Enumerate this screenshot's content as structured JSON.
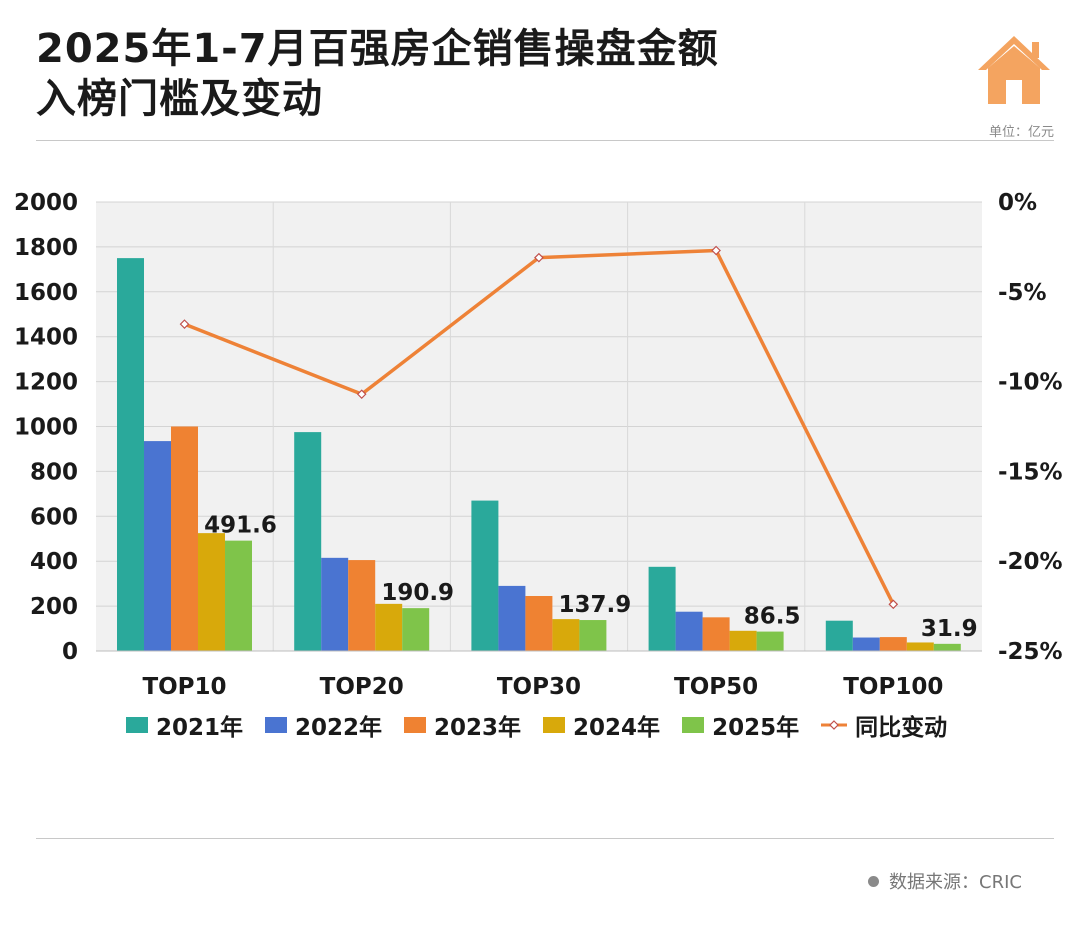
{
  "header": {
    "title_line1": "2025年1-7月百强房企销售操盘金额",
    "title_line2": "入榜门槛及变动",
    "unit": "单位：亿元"
  },
  "footer": {
    "source": "数据来源：CRIC"
  },
  "colors": {
    "2021": "#2aa99b",
    "2022": "#4a74d1",
    "2023": "#ef8232",
    "2024": "#d8a90b",
    "2025": "#7fc44a",
    "line": "#ee8237",
    "house": "#f4a460"
  },
  "chart_data": {
    "type": "bar",
    "title": "2025年1-7月百强房企销售操盘金额入榜门槛及变动",
    "categories": [
      "TOP10",
      "TOP20",
      "TOP30",
      "TOP50",
      "TOP100"
    ],
    "series": [
      {
        "name": "2021年",
        "key": "2021",
        "values": [
          1750,
          975,
          670,
          375,
          135
        ]
      },
      {
        "name": "2022年",
        "key": "2022",
        "values": [
          935,
          415,
          290,
          175,
          60
        ]
      },
      {
        "name": "2023年",
        "key": "2023",
        "values": [
          1000,
          405,
          245,
          150,
          62
        ]
      },
      {
        "name": "2024年",
        "key": "2024",
        "values": [
          525,
          210,
          142,
          90,
          38
        ]
      },
      {
        "name": "2025年",
        "key": "2025",
        "values": [
          491.6,
          190.9,
          137.9,
          86.5,
          31.9
        ]
      }
    ],
    "line_series": {
      "name": "同比变动",
      "values": [
        -6.8,
        -10.7,
        -3.1,
        -2.7,
        -22.4
      ]
    },
    "data_labels": [
      "491.6",
      "190.9",
      "137.9",
      "86.5",
      "31.9"
    ],
    "ylim": [
      0,
      2000
    ],
    "yticks": [
      "0",
      "200",
      "400",
      "600",
      "800",
      "1000",
      "1200",
      "1400",
      "1600",
      "1800",
      "2000"
    ],
    "y2lim": [
      -25,
      0
    ],
    "y2ticks": [
      "-25%",
      "-20%",
      "-15%",
      "-10%",
      "-5%",
      "0%"
    ],
    "legend_position": "bottom",
    "grid": true
  }
}
